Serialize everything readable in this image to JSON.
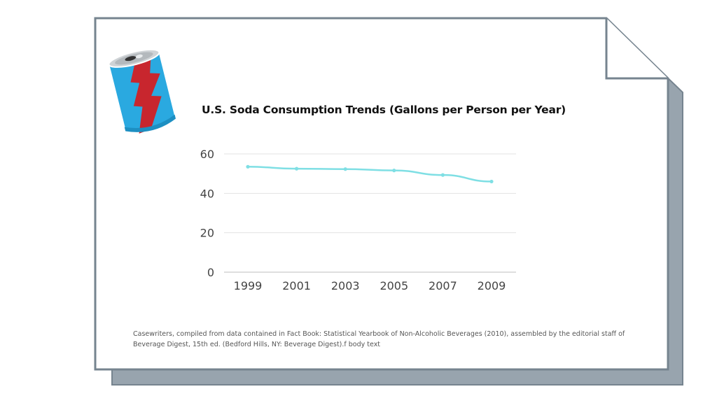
{
  "chart_data": {
    "type": "line",
    "title": "U.S. Soda Consumption Trends (Gallons per Person per Year)",
    "xlabel": "",
    "ylabel": "",
    "categories": [
      "1999",
      "2001",
      "2003",
      "2005",
      "2007",
      "2009"
    ],
    "series": [
      {
        "name": "Gallons per Person per Year",
        "values": [
          53.5,
          52.5,
          52.3,
          51.6,
          49.3,
          46.0
        ]
      }
    ],
    "ylim": [
      0,
      60
    ],
    "yticks": [
      0,
      20,
      40,
      60
    ],
    "grid": true,
    "legend": "none",
    "colors": {
      "line": "#7fdfe4",
      "grid": "#e3e3e3",
      "axis": "#bdbdbd",
      "tick_label": "#444444"
    }
  },
  "source_note": "Casewriters, compiled from data contained in Fact Book: Statistical Yearbook of Non-Alcoholic Beverages (2010), assembled by the editorial staff of Beverage Digest, 15th ed. (Bedford Hills, NY: Beverage Digest).f body text",
  "decoration": {
    "document_icon": "folded-document-icon",
    "can_icon": "soda-can-icon",
    "colors": {
      "doc_border": "#76848f",
      "doc_shadow": "#98a4ae",
      "can_blue": "#2aa9e0",
      "can_red": "#c8262e",
      "can_lid": "#cfd3d6"
    }
  }
}
